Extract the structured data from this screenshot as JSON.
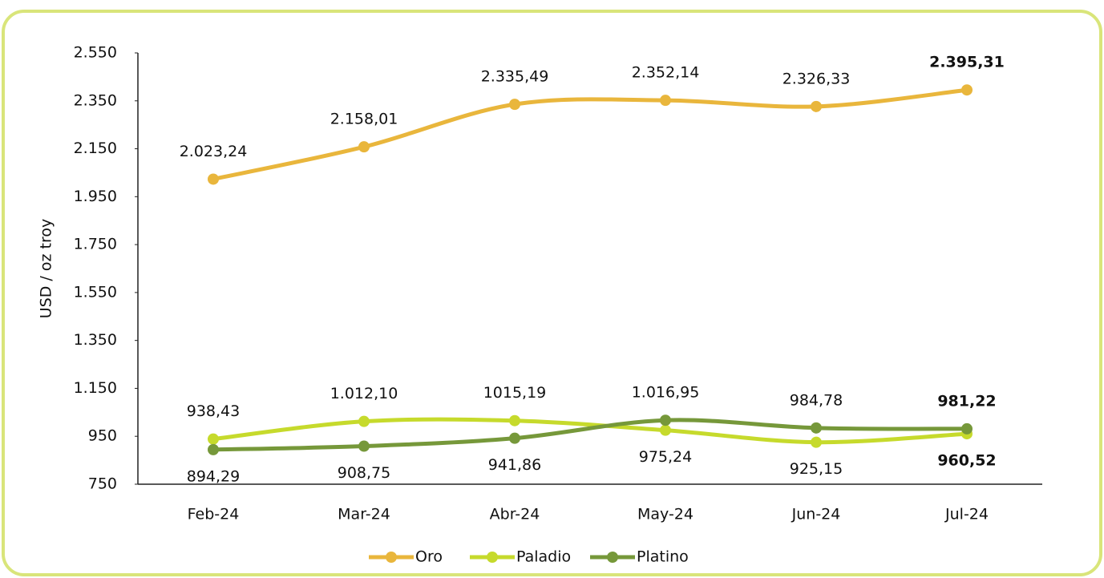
{
  "chart_data": {
    "type": "line",
    "y_label": "USD / oz troy",
    "categories": [
      "Feb-24",
      "Mar-24",
      "Abr-24",
      "May-24",
      "Jun-24",
      "Jul-24"
    ],
    "series": [
      {
        "name": "Oro",
        "color": "#e9b63c",
        "values": [
          2023.24,
          2158.01,
          2335.49,
          2352.14,
          2326.33,
          2395.31
        ],
        "value_labels": [
          "2.023,24",
          "2.158,01",
          "2.335,49",
          "2.352,14",
          "2.326,33",
          "2.395,31"
        ]
      },
      {
        "name": "Paladio",
        "color": "#c6da2c",
        "values": [
          938.43,
          1012.1,
          1015.19,
          975.24,
          925.15,
          960.52
        ],
        "value_labels": [
          "938,43",
          "1.012,10",
          "1015,19",
          "975,24",
          "925,15",
          "960,52"
        ]
      },
      {
        "name": "Platino",
        "color": "#76983a",
        "values": [
          894.29,
          908.75,
          941.86,
          1016.95,
          984.78,
          981.22
        ],
        "value_labels": [
          "894,29",
          "908,75",
          "941,86",
          "1.016,95",
          "984,78",
          "981,22"
        ]
      }
    ],
    "ylim": [
      750,
      2550
    ],
    "yticks": [
      750,
      950,
      {
        "value": 1150,
        "label": "1.150"
      },
      {
        "value": 1350,
        "label": "1.350"
      },
      {
        "value": 1550,
        "label": "1.550"
      },
      {
        "value": 1750,
        "label": "1.750"
      },
      {
        "value": 1950,
        "label": "1.950"
      },
      {
        "value": 2150,
        "label": "2.150"
      },
      {
        "value": 2350,
        "label": "2.350"
      },
      {
        "value": 2550,
        "label": "2.550"
      }
    ],
    "grid": false,
    "legend": "bottom"
  }
}
